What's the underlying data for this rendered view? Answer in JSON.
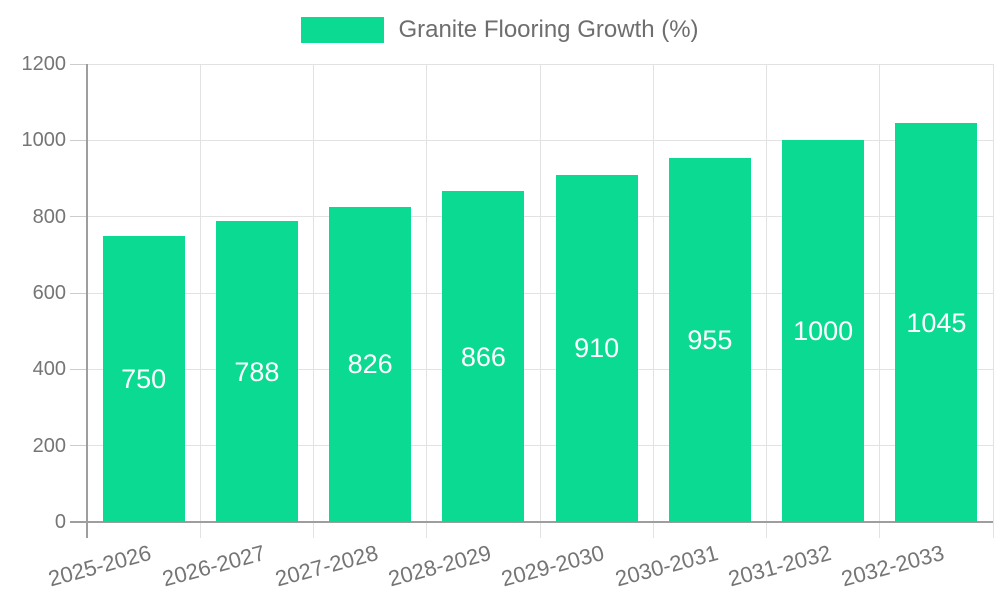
{
  "chart_data": {
    "type": "bar",
    "title": "Granite Flooring Growth (%)",
    "categories": [
      "2025-2026",
      "2026-2027",
      "2027-2028",
      "2028-2029",
      "2029-2030",
      "2030-2031",
      "2031-2032",
      "2032-2033"
    ],
    "values": [
      750,
      788,
      826,
      866,
      910,
      955,
      1000,
      1045
    ],
    "xlabel": "",
    "ylabel": "",
    "ylim": [
      0,
      1200
    ],
    "yticks": [
      0,
      200,
      400,
      600,
      800,
      1000,
      1200
    ],
    "grid": true,
    "legend": {
      "position": "top",
      "label": "Granite Flooring Growth (%)"
    },
    "colors": {
      "bar": "#0bda92",
      "value_label": "#ffffff",
      "axis_text": "#757575",
      "legend_text": "#6e6e6e",
      "grid_line": "#e2e2e2",
      "tick": "#cccccc",
      "axis_line": "#9e9e9e"
    }
  }
}
